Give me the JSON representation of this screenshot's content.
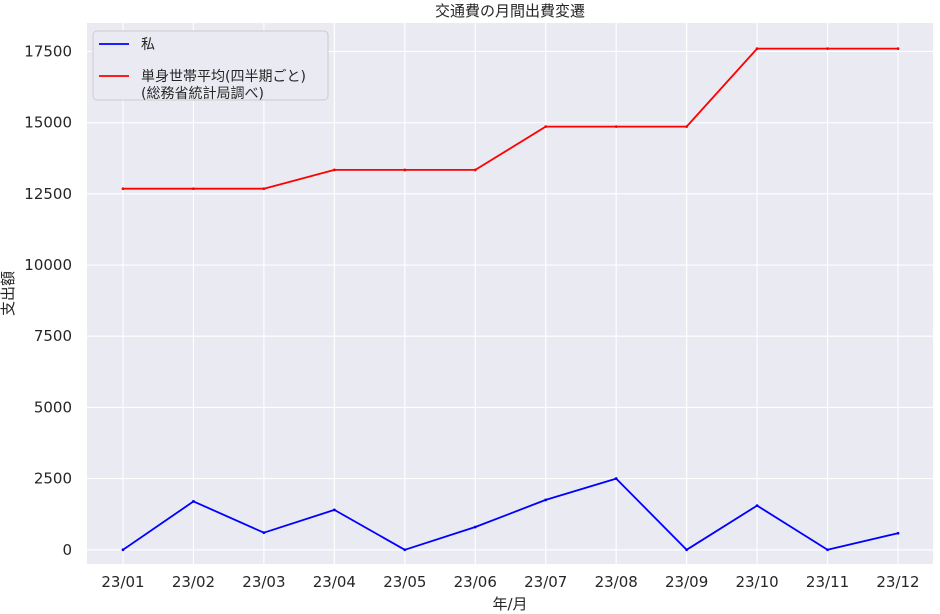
{
  "chart_data": {
    "type": "line",
    "title": "交通費の月間出費変遷",
    "xlabel": "年/月",
    "ylabel": "支出額",
    "categories": [
      "23/01",
      "23/02",
      "23/03",
      "23/04",
      "23/05",
      "23/06",
      "23/07",
      "23/08",
      "23/09",
      "23/10",
      "23/11",
      "23/12"
    ],
    "ylim": [
      -500,
      18500
    ],
    "yticks": [
      0,
      2500,
      5000,
      7500,
      10000,
      12500,
      15000,
      17500
    ],
    "grid": true,
    "legend_position": "top-left",
    "background_color": "#eaeaf2",
    "series": [
      {
        "name": "私",
        "color": "#0000ff",
        "values": [
          0,
          1700,
          600,
          1400,
          0,
          800,
          1750,
          2500,
          0,
          1550,
          0,
          580
        ]
      },
      {
        "name": "単身世帯平均(四半期ごと)\n(総務省統計局調べ)",
        "color": "#ff0000",
        "values": [
          12680,
          12680,
          12680,
          13340,
          13340,
          13340,
          14860,
          14860,
          14860,
          17600,
          17600,
          17600
        ]
      }
    ]
  }
}
